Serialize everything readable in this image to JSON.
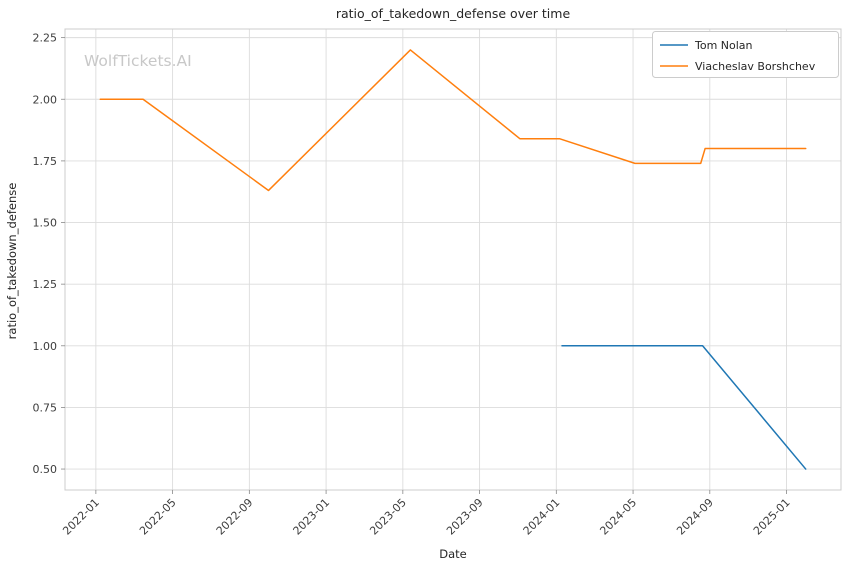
{
  "watermark": "WolfTickets.AI",
  "chart_data": {
    "type": "line",
    "title": "ratio_of_takedown_defense over time",
    "xlabel": "Date",
    "ylabel": "ratio_of_takedown_defense",
    "grid": true,
    "legend_position": "upper right",
    "background_color": "#ffffff",
    "grid_color": "#dcdcdc",
    "spine_color": "#cccccc",
    "tick_label_color": "#3d3d3d",
    "text_color": "#262626",
    "watermark_color": "#c8c8c8",
    "ylim": [
      0.415,
      2.285
    ],
    "yticks": [
      "0.50",
      "0.75",
      "1.00",
      "1.25",
      "1.50",
      "1.75",
      "2.00",
      "2.25"
    ],
    "xticks": [
      "2022-01",
      "2022-05",
      "2022-09",
      "2023-01",
      "2023-05",
      "2023-09",
      "2024-01",
      "2024-05",
      "2024-09",
      "2025-01"
    ],
    "series": [
      {
        "name": "Tom Nolan",
        "color": "#1f77b4",
        "points": [
          [
            "2024-01-10",
            1.0
          ],
          [
            "2024-08-20",
            1.0
          ],
          [
            "2025-02-01",
            0.5
          ]
        ]
      },
      {
        "name": "Viacheslav Borshchev",
        "color": "#ff7f0e",
        "points": [
          [
            "2022-01-08",
            2.0
          ],
          [
            "2022-03-15",
            2.0
          ],
          [
            "2022-10-01",
            1.63
          ],
          [
            "2023-05-13",
            2.2
          ],
          [
            "2023-11-04",
            1.84
          ],
          [
            "2024-01-06",
            1.84
          ],
          [
            "2024-05-04",
            1.74
          ],
          [
            "2024-08-17",
            1.74
          ],
          [
            "2024-08-24",
            1.8
          ],
          [
            "2025-02-01",
            1.8
          ]
        ]
      }
    ]
  }
}
